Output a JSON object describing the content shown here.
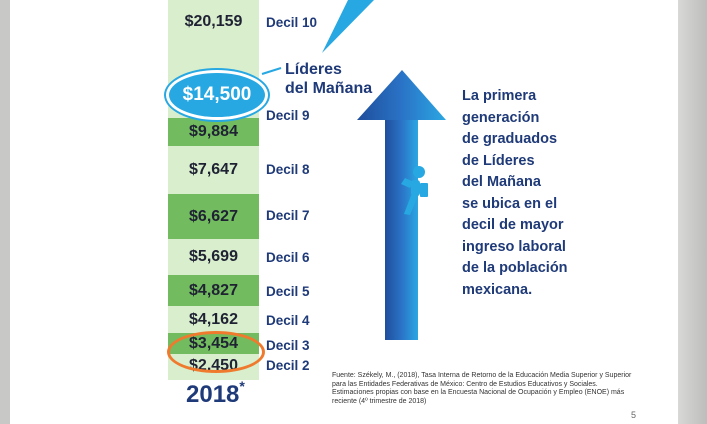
{
  "deciles": [
    {
      "value": "$20,159",
      "label": "Decil 10"
    },
    {
      "value": "$9,884",
      "label": "Decil 9"
    },
    {
      "value": "$7,647",
      "label": "Decil 8"
    },
    {
      "value": "$6,627",
      "label": "Decil 7"
    },
    {
      "value": "$5,699",
      "label": "Decil 6"
    },
    {
      "value": "$4,827",
      "label": "Decil 5"
    },
    {
      "value": "$4,162",
      "label": "Decil 4"
    },
    {
      "value": "$3,454",
      "label": "Decil 3"
    },
    {
      "value": "$2,450",
      "label": "Decil 2"
    }
  ],
  "highlight": {
    "value": "$14,500",
    "label_line1": "Líderes",
    "label_line2": "del Mañana"
  },
  "year": {
    "text": "2018",
    "mark": "*"
  },
  "side_text": [
    "La primera",
    "generación",
    "de graduados",
    "de Líderes",
    "del Mañana",
    "se ubica en el",
    "decil de mayor",
    "ingreso laboral",
    "de la población",
    "mexicana."
  ],
  "source": "Fuente: Székely, M., (2018), Tasa Interna de Retorno de la Educación Media Superior y Superior para las Entidades Federativas de México: Centro de Estudios Educativos y Sociales. Estimaciones propias con base en la Encuesta Nacional de Ocupación y Empleo (ENOE) más reciente (4º trimestre de 2018)",
  "page_number": "5",
  "colors": {
    "dark_green": "#72bb5f",
    "light_green": "#d8eecc",
    "navy": "#1f3a78",
    "accent_blue": "#27a8e2",
    "orange": "#ef7a2e"
  },
  "icons": [
    "upward-arrow-icon",
    "climber-figure-icon",
    "pointer-triangle-icon"
  ]
}
